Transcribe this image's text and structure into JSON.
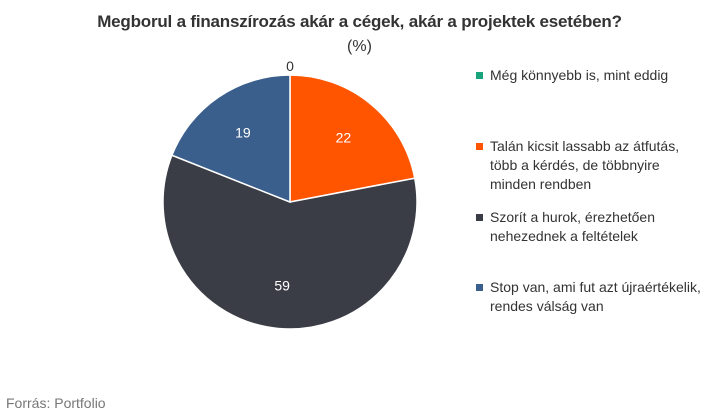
{
  "chart_data": {
    "type": "pie",
    "title": "Megborul a finanszírozás akár a cégek, akár a projektek esetében?",
    "subtitle": "(%)",
    "categories": [
      "Még könnyebb is, mint eddig",
      "Talán kicsit lassabb az átfutás, több a kérdés, de többnyire minden rendben",
      "Szorít a hurok, érezhetően nehezednek a feltételek",
      "Stop van, ami fut azt újraértékelik, rendes válság van"
    ],
    "values": [
      0,
      22,
      59,
      19
    ],
    "colors": [
      "#19a37c",
      "#ff5500",
      "#3a3d45",
      "#3a5f8c"
    ],
    "legend_position": "right",
    "source": "Forrás: Portfolio"
  },
  "legend_display": [
    "Még könnyebb is, mint eddig",
    "Talán kicsit lassabb az átfutás,\ntöbb a kérdés, de többnyire\nminden rendben",
    "Szorít a hurok, érezhetően\nnehezednek a feltételek",
    "Stop van, ami fut azt újraértékelik,\nrendes válság van"
  ]
}
